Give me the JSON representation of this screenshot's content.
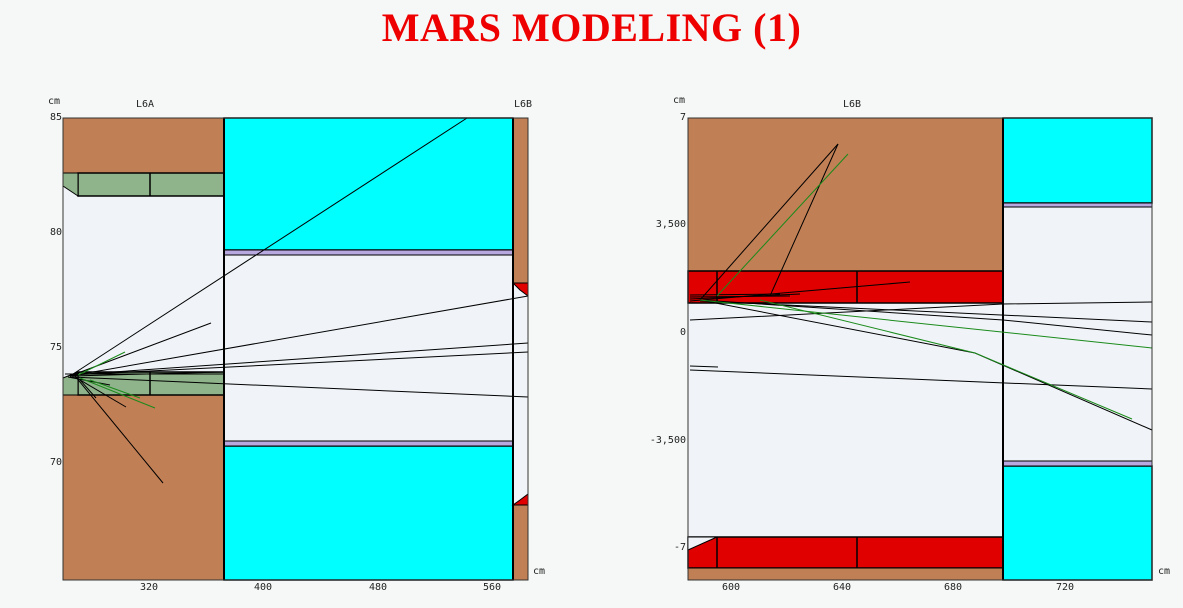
{
  "title": "MARS MODELING (1)",
  "left_plot": {
    "y_unit": "cm",
    "x_unit": "cm",
    "top_label_a": "L6A",
    "top_label_b": "L6B",
    "y_ticks": [
      "85",
      "80",
      "75",
      "70"
    ],
    "x_ticks": [
      "320",
      "400",
      "480",
      "560"
    ]
  },
  "right_plot": {
    "y_unit": "cm",
    "x_unit": "cm",
    "top_label": "L6B",
    "y_ticks": [
      "7",
      "3,500",
      "0",
      "-3,500",
      "-7"
    ],
    "x_ticks": [
      "600",
      "640",
      "680",
      "720"
    ]
  },
  "colors": {
    "title": "#ee0000",
    "copper": "#c17f55",
    "cyan": "#00ffff",
    "green": "#8fb38a",
    "red": "#e00000",
    "vacuum": "#f0f4f8",
    "liner": "#b8a8e0"
  }
}
